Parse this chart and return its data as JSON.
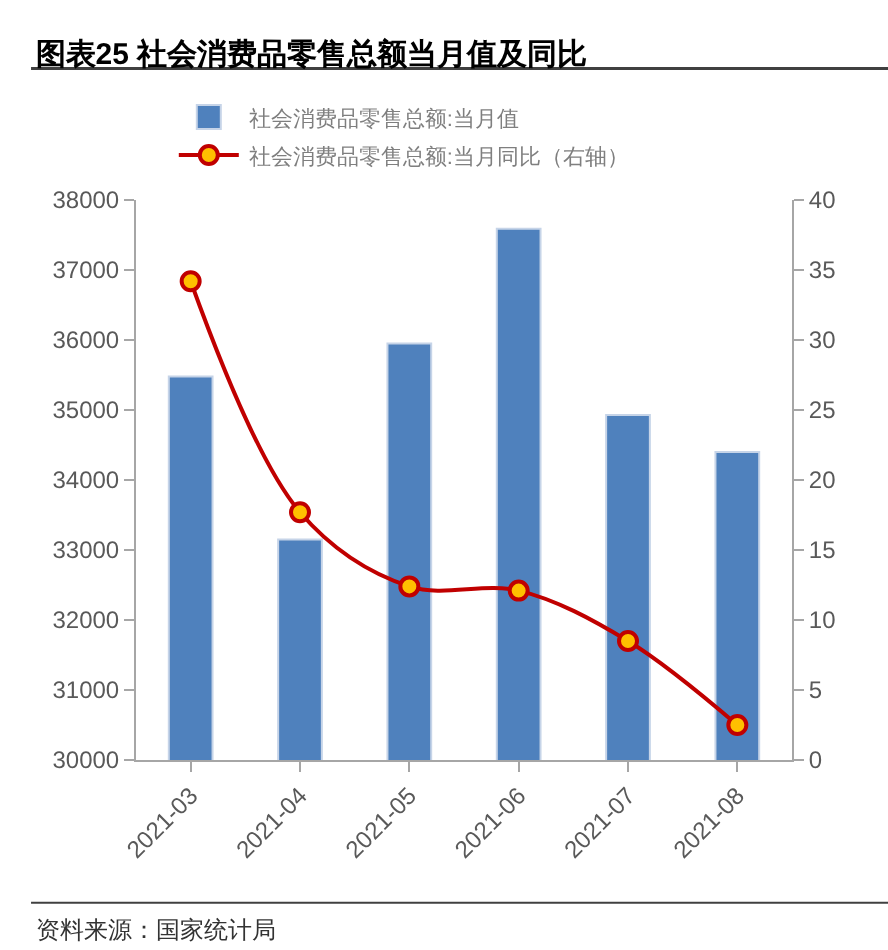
{
  "chart_data": {
    "type": "bar",
    "title": "图表25 社会消费品零售总额当月值及同比",
    "categories": [
      "2021-03",
      "2021-04",
      "2021-05",
      "2021-06",
      "2021-07",
      "2021-08"
    ],
    "series": [
      {
        "name": "社会消费品零售总额:当月值",
        "color": "#4f81bd",
        "values": [
          35480,
          33150,
          35950,
          37590,
          34930,
          34400
        ]
      },
      {
        "name": "社会消费品零售总额:当月同比（右轴）",
        "type": "line",
        "axis": "y2",
        "color": "#c00000",
        "values": [
          34.2,
          17.7,
          12.4,
          12.1,
          8.5,
          2.5
        ]
      }
    ],
    "ylim": [
      30000,
      38000
    ],
    "yticks": [
      30000,
      31000,
      32000,
      33000,
      34000,
      35000,
      36000,
      37000,
      38000
    ],
    "y2lim": [
      0,
      40
    ],
    "y2ticks": [
      0,
      5,
      10,
      15,
      20,
      25,
      30,
      35,
      40
    ],
    "marker": "circle",
    "line_style": "solid",
    "grid": false,
    "legend": "top",
    "annotations": [
      "资料来源：国家统计局"
    ]
  }
}
